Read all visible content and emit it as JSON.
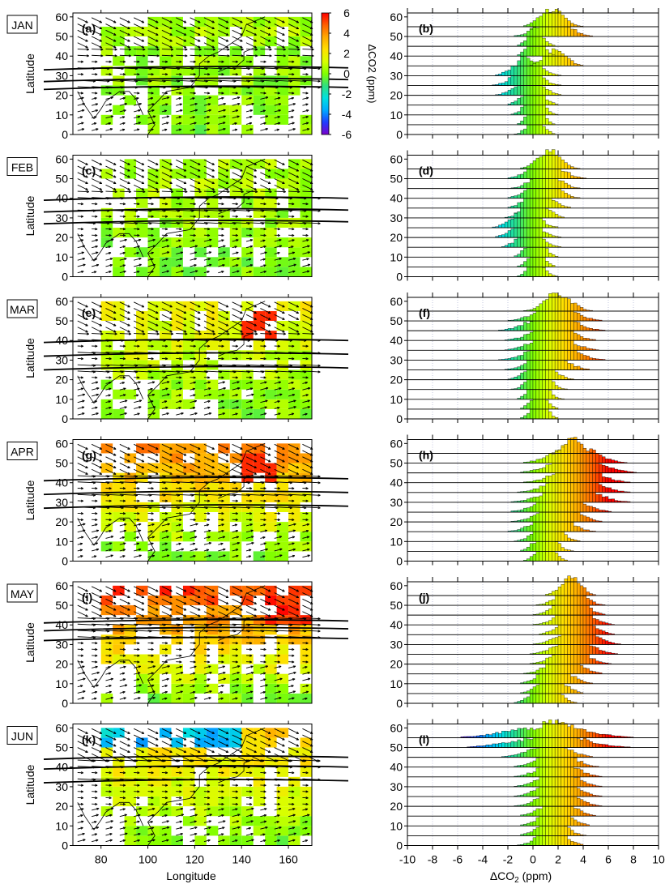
{
  "chart_data": {
    "type": "panel-figure",
    "months": [
      "JAN",
      "FEB",
      "MAR",
      "APR",
      "MAY",
      "JUN"
    ],
    "map_panel_labels": [
      "(a)",
      "(c)",
      "(e)",
      "(g)",
      "(i)",
      "(k)"
    ],
    "hist_panel_labels": [
      "(b)",
      "(d)",
      "(f)",
      "(h)",
      "(j)",
      "(l)"
    ],
    "map_axes": {
      "xlabel": "Longitude",
      "ylabel": "Latitude",
      "x_ticks": [
        80,
        100,
        120,
        140,
        160
      ],
      "y_ticks": [
        0,
        10,
        20,
        30,
        40,
        50,
        60
      ],
      "xlim": [
        68,
        170
      ],
      "ylim": [
        0,
        62
      ]
    },
    "hist_axes": {
      "xlabel": "ΔCO2 (ppm)",
      "x_ticks": [
        -10,
        -8,
        -6,
        -4,
        -2,
        0,
        2,
        4,
        6,
        8,
        10
      ],
      "y_ticks": [
        0,
        10,
        20,
        30,
        40,
        50,
        60
      ],
      "xlim": [
        -10,
        10
      ],
      "latitude_bands": [
        5,
        10,
        15,
        20,
        25,
        30,
        35,
        40,
        45,
        50,
        55,
        60
      ]
    },
    "colorbar": {
      "label": "ΔCO2 (ppm)",
      "ticks": [
        6,
        4,
        2,
        0,
        -2,
        -4,
        -6
      ],
      "range": [
        -6,
        6
      ],
      "colors": [
        "#7a00cc",
        "#1f3dff",
        "#00aaff",
        "#00e0e0",
        "#30e080",
        "#80ff00",
        "#d8ff00",
        "#ffe000",
        "#ffaa00",
        "#ff6000",
        "#ff0000"
      ]
    },
    "distribution_centers_ppm": [
      [
        0.2,
        0.2,
        0.1,
        0.0,
        -0.3,
        -0.5,
        -0.5,
        1.8,
        0.2,
        0.2,
        1.6,
        1.5
      ],
      [
        0.3,
        0.3,
        0.2,
        -0.2,
        -0.5,
        -0.6,
        0.2,
        0.5,
        0.8,
        1.0,
        1.0,
        1.3
      ],
      [
        0.5,
        0.5,
        0.5,
        0.5,
        0.6,
        1.2,
        1.5,
        1.5,
        1.5,
        1.5,
        1.8,
        2.0
      ],
      [
        1.0,
        1.0,
        1.2,
        1.5,
        2.0,
        2.2,
        3.0,
        3.2,
        3.5,
        3.5,
        3.3,
        3.2
      ],
      [
        1.0,
        1.5,
        1.8,
        2.5,
        3.0,
        3.3,
        3.5,
        3.5,
        3.3,
        3.0,
        3.0,
        3.0
      ],
      [
        1.5,
        1.5,
        1.8,
        2.0,
        2.0,
        2.0,
        2.0,
        2.0,
        1.8,
        1.0,
        0.8,
        0.6
      ]
    ],
    "distribution_spreads_ppm": [
      [
        0.6,
        0.6,
        0.7,
        0.8,
        1.0,
        1.0,
        1.0,
        0.8,
        0.6,
        0.6,
        1.2,
        0.9
      ],
      [
        0.6,
        0.6,
        0.7,
        0.9,
        1.0,
        1.0,
        0.9,
        1.0,
        1.1,
        1.0,
        1.2,
        0.9
      ],
      [
        0.6,
        0.6,
        0.7,
        0.8,
        1.0,
        1.3,
        1.6,
        1.4,
        1.4,
        1.6,
        1.4,
        1.0
      ],
      [
        0.7,
        0.8,
        1.0,
        1.3,
        1.4,
        1.6,
        1.8,
        1.7,
        1.6,
        1.8,
        1.6,
        0.6
      ],
      [
        1.0,
        1.0,
        1.1,
        1.2,
        1.2,
        1.3,
        1.3,
        1.2,
        1.2,
        1.1,
        1.0,
        0.8
      ],
      [
        1.0,
        1.0,
        1.1,
        1.2,
        1.3,
        1.3,
        1.3,
        1.3,
        1.3,
        1.5,
        2.6,
        2.8
      ]
    ]
  }
}
